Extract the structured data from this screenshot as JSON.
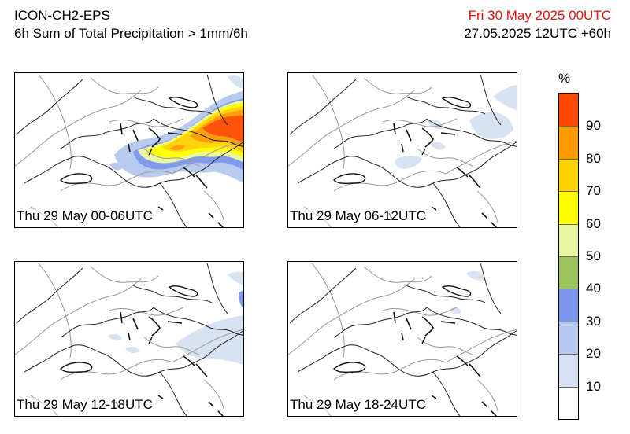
{
  "header": {
    "model": "ICON-CH2-EPS",
    "product": "6h Sum of Total Precipitation > 1mm/6h",
    "valid_time": "Fri 30 May 2025 00UTC",
    "run_info": "27.05.2025 12UTC +60h"
  },
  "panels": [
    {
      "label": "Thu 29 May 00-06UTC"
    },
    {
      "label": "Thu 29 May 06-12UTC"
    },
    {
      "label": "Thu 29 May 12-18UTC"
    },
    {
      "label": "Thu 29 May 18-24UTC"
    }
  ],
  "colorbar": {
    "unit": "%",
    "tick_labels": [
      "10",
      "20",
      "30",
      "40",
      "50",
      "60",
      "70",
      "80",
      "90"
    ],
    "colors": [
      "#ffffff",
      "#d6e2f2",
      "#b5c9ef",
      "#7a95ec",
      "#9cc45a",
      "#e8f6a0",
      "#ffff00",
      "#ffd200",
      "#ff9a00",
      "#ff4a00"
    ]
  }
}
